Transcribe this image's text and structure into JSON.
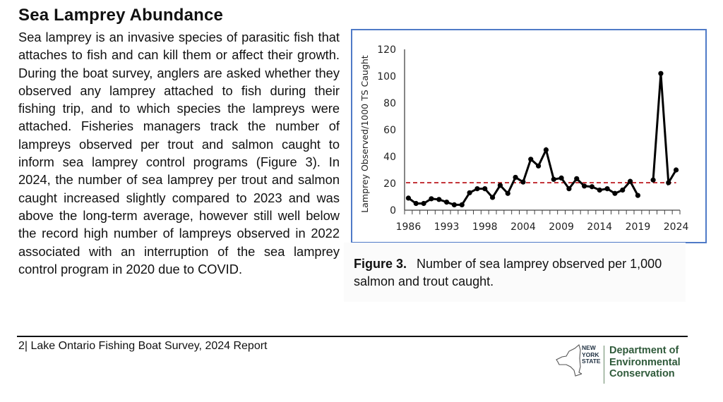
{
  "section": {
    "title": "Sea Lamprey Abundance",
    "body": "Sea lamprey is an invasive species of parasitic fish that attaches to fish and can kill them or affect their growth. During the boat survey, anglers are asked whether they observed any lamprey attached to fish during their fishing trip, and to which species the lampreys were attached. Fisheries managers track the number of lampreys observed per trout and salmon caught to inform sea lamprey control programs (Figure 3). In 2024, the number of sea lamprey per trout and salmon caught increased slightly compared to 2023 and was above the long-term average, however still well below the record high number of lampreys observed in 2022 associated with an interruption of the sea lamprey control program in 2020 due to COVID."
  },
  "figure": {
    "label": "Figure 3.",
    "caption": "Number of sea lamprey observed per 1,000 salmon and trout caught."
  },
  "footer": {
    "page_text": "2| Lake Ontario Fishing Boat Survey, 2024 Report",
    "logo_state": [
      "NEW",
      "YORK",
      "STATE"
    ],
    "logo_dept": [
      "Department of",
      "Environmental",
      "Conservation"
    ]
  },
  "colors": {
    "frame": "#4f7ac7",
    "series": "#000000",
    "average_line": "#c0272d",
    "logo_green": "#2f5a3a"
  },
  "chart_data": {
    "type": "line",
    "title": "",
    "xlabel": "",
    "ylabel": "Lamprey Observed/1000 TS Caught",
    "ylim": [
      0,
      120
    ],
    "yticks": [
      0,
      20,
      40,
      60,
      80,
      100,
      120
    ],
    "xtick_labels": [
      "1986",
      "1993",
      "1998",
      "2004",
      "2009",
      "2014",
      "2019",
      "2024"
    ],
    "xtick_label_every": 5,
    "grid": false,
    "legend": "none",
    "categories": [
      "1986",
      "1988",
      "1989",
      "1990",
      "1991",
      "1993",
      "1994",
      "1995",
      "1996",
      "1997",
      "1998",
      "1999",
      "2000",
      "2001",
      "2002",
      "2004",
      "2005",
      "2006",
      "2007",
      "2008",
      "2009",
      "2010",
      "2011",
      "2012",
      "2013",
      "2014",
      "2015",
      "2016",
      "2017",
      "2018",
      "2019",
      "2020",
      "2021",
      "2022",
      "2023",
      "2024"
    ],
    "series": [
      {
        "name": "Lamprey observed per 1000 trout and salmon caught",
        "values": [
          9,
          5,
          5,
          8.5,
          8,
          6,
          4,
          4,
          13,
          16,
          16,
          9.5,
          18.5,
          12.5,
          24.5,
          21,
          38,
          33,
          45,
          23,
          24,
          16,
          23.5,
          18,
          17.5,
          15,
          16,
          12.5,
          15,
          21.5,
          11,
          null,
          22.5,
          102,
          20.5,
          30
        ]
      }
    ],
    "reference_line": {
      "name": "Long-term average",
      "value": 20.5,
      "style": "dashed"
    }
  }
}
